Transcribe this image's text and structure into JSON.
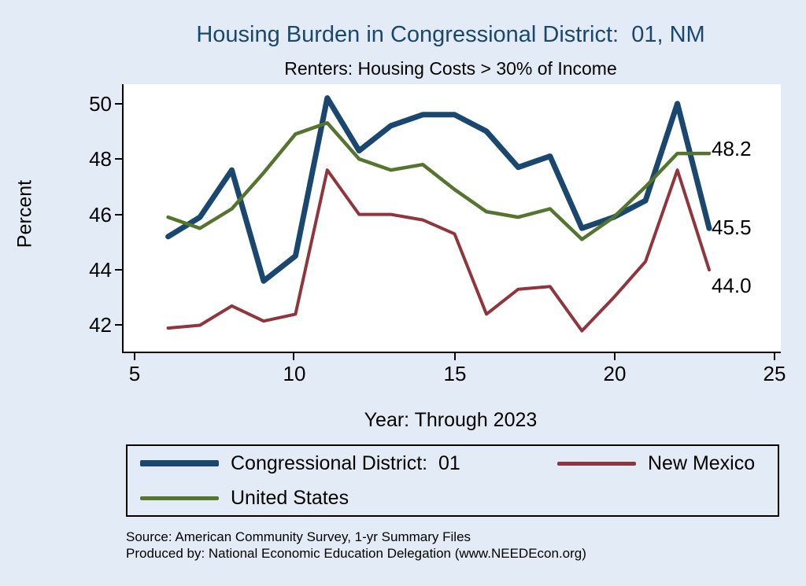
{
  "title": "Housing Burden in Congressional District:  01, NM",
  "subtitle": "Renters: Housing Costs > 30% of Income",
  "xlabel": "Year: Through 2023",
  "ylabel": "Percent",
  "colors": {
    "background": "#e3ecf6",
    "title": "#1a476f",
    "congressional_district": "#1a476f",
    "new_mexico": "#90353b",
    "united_states": "#55752f"
  },
  "end_labels": [
    {
      "text": "48.2",
      "series": "United States"
    },
    {
      "text": "45.5",
      "series": "Congressional District: 01"
    },
    {
      "text": "44.0",
      "series": "New Mexico"
    }
  ],
  "legend": [
    {
      "label": "Congressional District:  01",
      "color": "#1a476f",
      "thickness": 8
    },
    {
      "label": "New Mexico",
      "color": "#90353b",
      "thickness": 5
    },
    {
      "label": "United States",
      "color": "#55752f",
      "thickness": 5
    }
  ],
  "source_line1": "Source: American Community Survey, 1-yr Summary Files",
  "source_line2": "Produced by: National Economic Education Delegation (www.NEEDEcon.org)",
  "chart_data": {
    "type": "line",
    "title": "Housing Burden in Congressional District:  01, NM",
    "subtitle": "Renters: Housing Costs > 30% of Income",
    "xlabel": "Year: Through 2023",
    "ylabel": "Percent",
    "x": [
      6,
      7,
      8,
      9,
      10,
      11,
      12,
      13,
      14,
      15,
      16,
      17,
      18,
      19,
      20,
      21,
      22,
      23
    ],
    "series": [
      {
        "name": "Congressional District:  01",
        "color": "#1a476f",
        "width": 7,
        "values": [
          45.2,
          45.9,
          47.6,
          43.6,
          44.5,
          50.2,
          48.3,
          49.2,
          49.6,
          49.6,
          49.0,
          47.7,
          48.1,
          45.5,
          45.9,
          46.5,
          50.0,
          45.5
        ]
      },
      {
        "name": "New Mexico",
        "color": "#90353b",
        "width": 4,
        "values": [
          41.9,
          42.0,
          42.7,
          42.15,
          42.4,
          47.6,
          46.0,
          46.0,
          45.8,
          45.3,
          42.4,
          43.3,
          43.4,
          41.8,
          43.0,
          44.3,
          47.6,
          44.0
        ]
      },
      {
        "name": "United States",
        "color": "#55752f",
        "width": 4.5,
        "values": [
          45.9,
          45.5,
          46.2,
          47.5,
          48.9,
          49.3,
          48.0,
          47.6,
          47.8,
          46.9,
          46.1,
          45.9,
          46.2,
          45.1,
          45.9,
          47.0,
          48.2,
          48.2
        ]
      }
    ],
    "xlim": [
      4.6,
      25.25
    ],
    "ylim": [
      41.05,
      50.7
    ],
    "xticks": [
      5,
      10,
      15,
      20,
      25
    ],
    "yticks": [
      50,
      48,
      46,
      44,
      42
    ],
    "xtick_labels": [
      "5",
      "10",
      "15",
      "20",
      "25"
    ],
    "ytick_labels": [
      "50",
      "48",
      "46",
      "44",
      "42"
    ],
    "grid": false,
    "legend_position": "bottom"
  }
}
